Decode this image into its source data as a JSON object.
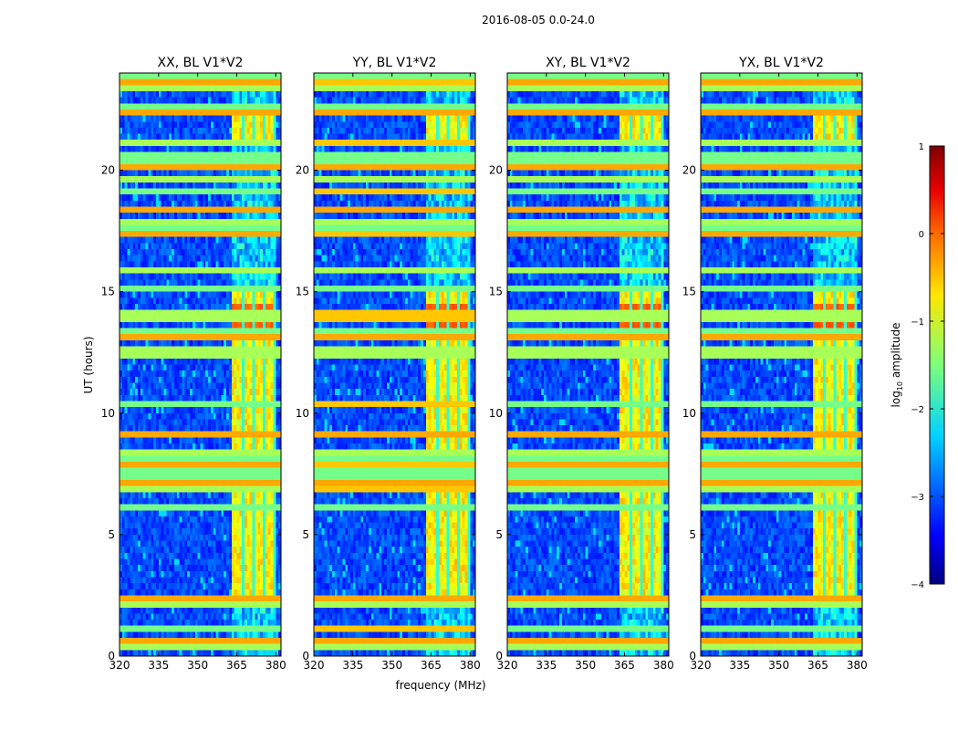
{
  "chart_data": {
    "type": "heatmap",
    "suptitle": "2016-08-05 0.0-24.0",
    "xlabel": "frequency (MHz)",
    "ylabel": "UT (hours)",
    "xlim": [
      320,
      382
    ],
    "ylim": [
      0,
      24
    ],
    "xticks": [
      320,
      335,
      350,
      365,
      380
    ],
    "yticks": [
      0,
      5,
      10,
      15,
      20
    ],
    "panels": [
      {
        "title": "XX, BL V1*V2"
      },
      {
        "title": "YY, BL V1*V2"
      },
      {
        "title": "XY, BL V1*V2"
      },
      {
        "title": "YX, BL V1*V2"
      }
    ],
    "colorbar": {
      "label_prefix": "log",
      "label_sub": "10",
      "label_suffix": " amplitude",
      "range": [
        -4,
        1
      ],
      "ticks": [
        "1",
        "0",
        "−1",
        "−2",
        "−3",
        "−4"
      ],
      "tick_values": [
        1,
        0,
        -1,
        -2,
        -3,
        -4
      ],
      "colormap": "jet"
    },
    "bright_band_mhz": [
      363.5,
      380.0
    ],
    "bright_band_active_hours": [
      [
        2.2,
        8.1
      ],
      [
        8.3,
        10.3
      ],
      [
        10.6,
        12.9
      ],
      [
        13.1,
        14.5
      ],
      [
        14.5,
        15.2
      ],
      [
        21.3,
        22.3
      ]
    ],
    "flag_rows_hours": [
      0.3,
      0.6,
      1.1,
      2.1,
      2.3,
      6.1,
      6.9,
      7.2,
      7.5,
      7.7,
      7.9,
      8.2,
      8.4,
      9.2,
      10.4,
      12.5,
      13.1,
      13.3,
      14.0,
      14.2,
      15.2,
      15.8,
      17.3,
      17.6,
      17.9,
      18.4,
      19.1,
      19.6,
      20.2,
      20.5,
      21.2,
      22.3,
      22.7,
      23.3,
      23.6,
      23.9
    ]
  }
}
